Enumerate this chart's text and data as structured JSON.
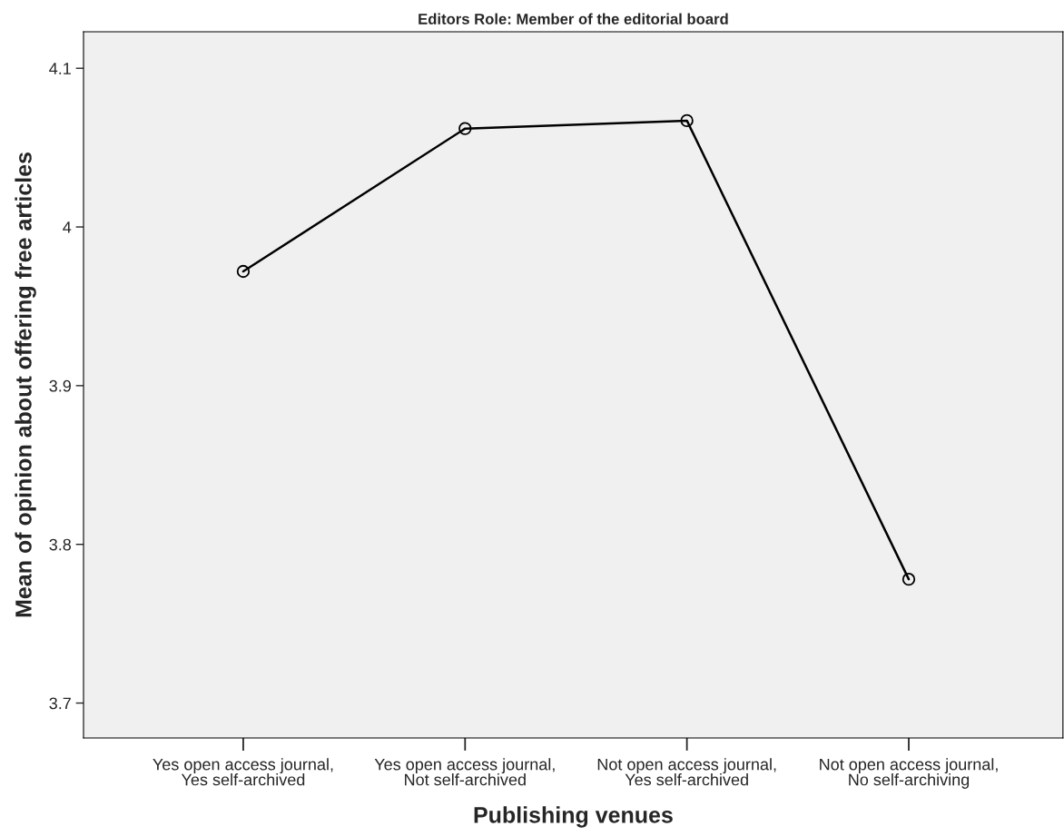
{
  "chart_data": {
    "type": "line",
    "title": "Editors Role: Member of the editorial board",
    "xlabel": "Publishing venues",
    "ylabel": "Mean of opinion about offering free articles",
    "categories": [
      "Yes open access journal,\nYes self-archived",
      "Yes open access journal,\nNot self-archived",
      "Not open access journal,\nYes self-archived",
      "Not open access journal,\nNo self-archiving"
    ],
    "series": [
      {
        "color": "#000000",
        "values": [
          3.972,
          4.062,
          4.067,
          3.778
        ]
      }
    ],
    "ylim": [
      3.678,
      4.123
    ],
    "yticks": [
      3.7,
      3.8,
      3.9,
      4,
      4.1
    ],
    "marker": "circle",
    "line_style": "solid",
    "grid": false,
    "legend": false
  }
}
